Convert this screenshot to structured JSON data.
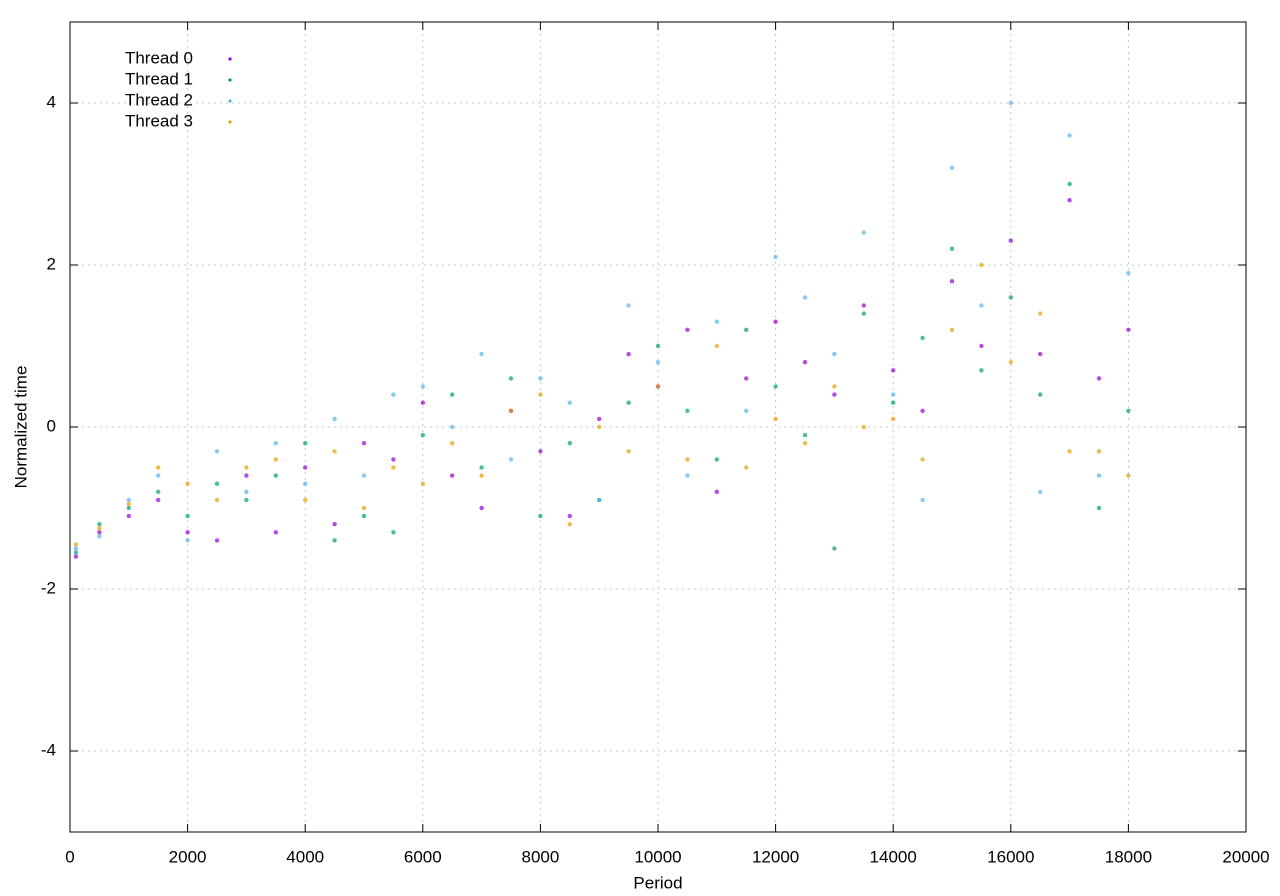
{
  "chart_data": {
    "type": "scatter",
    "x_label": "Period",
    "y_label": "Normalized time",
    "xlim": [
      0,
      20000
    ],
    "ylim": [
      -5,
      5
    ],
    "xticks": [
      0,
      2000,
      4000,
      6000,
      8000,
      10000,
      12000,
      14000,
      16000,
      18000,
      20000
    ],
    "yticks": [
      -4,
      -2,
      0,
      2,
      4
    ],
    "grid": true,
    "legend": "top-left",
    "series": [
      {
        "name": "Thread 0",
        "color": "#9400d3",
        "x": [
          100,
          500,
          1000,
          1500,
          2000,
          2500,
          3000,
          3500,
          4000,
          4500,
          5000,
          5500,
          6000,
          6500,
          7000,
          7500,
          8000,
          8500,
          9000,
          9500,
          10000,
          10500,
          11000,
          11500,
          12000,
          12500,
          13000,
          13500,
          14000,
          14500,
          15000,
          15500,
          16000,
          16500,
          17000,
          17500,
          18000
        ],
        "values": [
          -1.6,
          -1.3,
          -1.1,
          -0.9,
          -1.3,
          -1.4,
          -0.6,
          -1.3,
          -0.5,
          -1.2,
          -0.2,
          -0.4,
          0.3,
          -0.6,
          -1.0,
          0.2,
          -0.3,
          -1.1,
          0.1,
          0.9,
          0.5,
          1.2,
          -0.8,
          0.6,
          1.3,
          0.8,
          0.4,
          1.5,
          0.7,
          0.2,
          1.8,
          1.0,
          2.3,
          0.9,
          2.8,
          0.6,
          1.2
        ]
      },
      {
        "name": "Thread 1",
        "color": "#009e73",
        "x": [
          100,
          500,
          1000,
          1500,
          2000,
          2500,
          3000,
          3500,
          4000,
          4500,
          5000,
          5500,
          6000,
          6500,
          7000,
          7500,
          8000,
          8500,
          9000,
          9500,
          10000,
          10500,
          11000,
          11500,
          12000,
          12500,
          13000,
          13500,
          14000,
          14500,
          15000,
          15500,
          16000,
          16500,
          17000,
          17500,
          18000
        ],
        "values": [
          -1.55,
          -1.2,
          -1.0,
          -0.8,
          -1.1,
          -0.7,
          -0.9,
          -0.6,
          -0.2,
          -1.4,
          -1.1,
          -1.3,
          -0.1,
          0.4,
          -0.5,
          0.6,
          -1.1,
          -0.2,
          -0.9,
          0.3,
          1.0,
          0.2,
          -0.4,
          1.2,
          0.5,
          -0.1,
          -1.5,
          1.4,
          0.3,
          1.1,
          2.2,
          0.7,
          1.6,
          0.4,
          3.0,
          -1.0,
          0.2
        ]
      },
      {
        "name": "Thread 2",
        "color": "#56b4e9",
        "x": [
          100,
          500,
          1000,
          1500,
          2000,
          2500,
          3000,
          3500,
          4000,
          4500,
          5000,
          5500,
          6000,
          6500,
          7000,
          7500,
          8000,
          8500,
          9000,
          9500,
          10000,
          10500,
          11000,
          11500,
          12000,
          12500,
          13000,
          13500,
          14000,
          14500,
          15000,
          15500,
          16000,
          16500,
          17000,
          17500,
          18000
        ],
        "values": [
          -1.5,
          -1.35,
          -0.9,
          -0.6,
          -1.4,
          -0.3,
          -0.8,
          -0.2,
          -0.7,
          0.1,
          -0.6,
          0.4,
          0.5,
          0.0,
          0.9,
          -0.4,
          0.6,
          0.3,
          -0.9,
          1.5,
          0.8,
          -0.6,
          1.3,
          0.2,
          2.1,
          1.6,
          0.9,
          2.4,
          0.4,
          -0.9,
          3.2,
          1.5,
          4.0,
          -0.8,
          3.6,
          -0.6,
          1.9
        ]
      },
      {
        "name": "Thread 3",
        "color": "#e69f00",
        "x": [
          100,
          500,
          1000,
          1500,
          2000,
          2500,
          3000,
          3500,
          4000,
          4500,
          5000,
          5500,
          6000,
          6500,
          7000,
          7500,
          8000,
          8500,
          9000,
          9500,
          10000,
          10500,
          11000,
          11500,
          12000,
          12500,
          13000,
          13500,
          14000,
          14500,
          15000,
          15500,
          16000,
          16500,
          17000,
          17500,
          18000
        ],
        "values": [
          -1.45,
          -1.25,
          -0.95,
          -0.5,
          -0.7,
          -0.9,
          -0.5,
          -0.4,
          -0.9,
          -0.3,
          -1.0,
          -0.5,
          -0.7,
          -0.2,
          -0.6,
          0.2,
          0.4,
          -1.2,
          0.0,
          -0.3,
          0.5,
          -0.4,
          1.0,
          -0.5,
          0.1,
          -0.2,
          0.5,
          0.0,
          0.1,
          -0.4,
          1.2,
          2.0,
          0.8,
          1.4,
          -0.3,
          -0.3,
          -0.6
        ]
      }
    ]
  }
}
